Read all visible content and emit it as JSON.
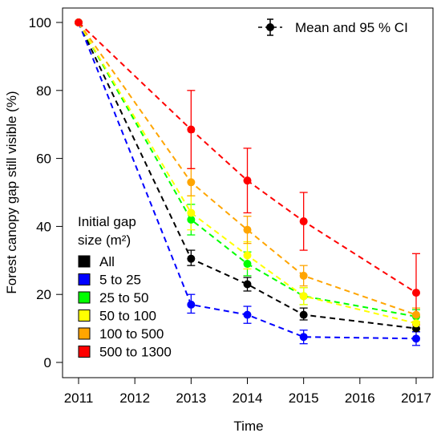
{
  "chart_data": {
    "type": "line",
    "title": "",
    "xlabel": "Time",
    "ylabel": "Forest canopy gap still visible (%)",
    "xlim": [
      2011,
      2017
    ],
    "ylim": [
      0,
      100
    ],
    "x_ticks": [
      "2011",
      "2012",
      "2013",
      "2014",
      "2015",
      "2016",
      "2017"
    ],
    "y_ticks": [
      "0",
      "20",
      "40",
      "60",
      "80",
      "100"
    ],
    "grid": false,
    "x": [
      2011,
      2013,
      2014,
      2015,
      2017
    ],
    "ci_legend_label": "Mean and 95 % CI",
    "legend_title": [
      "Initial gap",
      "size (m²)"
    ],
    "series": [
      {
        "name": "All",
        "color": "#000000",
        "values": [
          100,
          30.5,
          23,
          14,
          10
        ],
        "ci_low": [
          100,
          28.5,
          21,
          12.5,
          9
        ],
        "ci_high": [
          100,
          33,
          25,
          16,
          11
        ]
      },
      {
        "name": "5 to 25",
        "color": "#0000ff",
        "values": [
          100,
          17,
          14,
          7.5,
          7
        ],
        "ci_low": [
          100,
          14.5,
          11.5,
          5.5,
          5
        ],
        "ci_high": [
          100,
          20,
          16.5,
          9.5,
          9
        ]
      },
      {
        "name": "25 to 50",
        "color": "#00ff00",
        "values": [
          100,
          42,
          29,
          19.5,
          13.5
        ],
        "ci_low": [
          100,
          37.5,
          25.5,
          17,
          11.5
        ],
        "ci_high": [
          100,
          46.5,
          32.5,
          22,
          15.5
        ]
      },
      {
        "name": "50 to 100",
        "color": "#ffff00",
        "values": [
          100,
          44,
          31.5,
          19.5,
          11.5
        ],
        "ci_low": [
          100,
          39,
          27.5,
          17,
          9.5
        ],
        "ci_high": [
          100,
          49,
          35.5,
          22,
          13.5
        ]
      },
      {
        "name": "100 to 500",
        "color": "#ffa500",
        "values": [
          100,
          53,
          39,
          25.5,
          14
        ],
        "ci_low": [
          100,
          49,
          35,
          22.5,
          12
        ],
        "ci_high": [
          100,
          57,
          43,
          28.5,
          16
        ]
      },
      {
        "name": "500 to 1300",
        "color": "#ff0000",
        "values": [
          100,
          68.5,
          53.5,
          41.5,
          20.5
        ],
        "ci_low": [
          100,
          57,
          44,
          33,
          11
        ],
        "ci_high": [
          100,
          80,
          63,
          50,
          32
        ]
      }
    ]
  }
}
